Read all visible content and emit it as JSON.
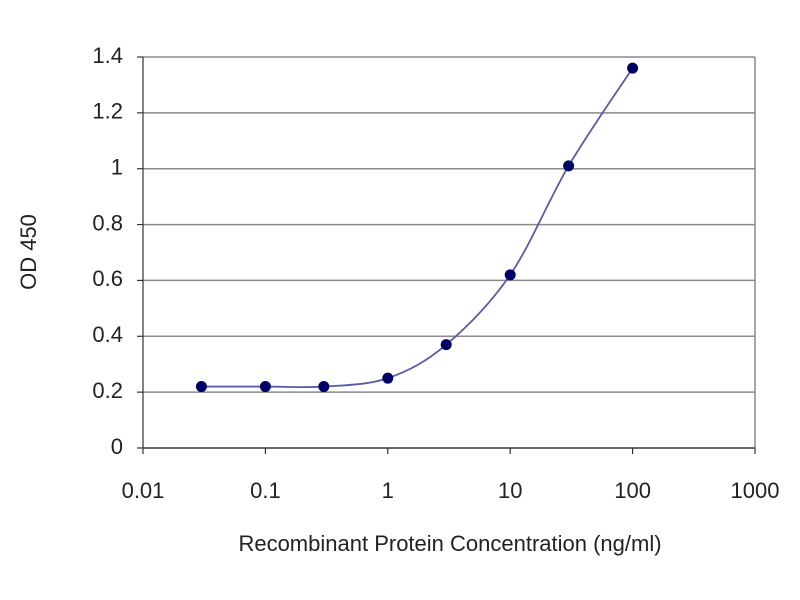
{
  "chart_data": {
    "type": "scatter",
    "xlabel": "Recombinant Protein Concentration (ng/ml)",
    "ylabel": "OD 450",
    "x": [
      0.03,
      0.1,
      0.3,
      1,
      3,
      10,
      30,
      100
    ],
    "values": [
      0.22,
      0.22,
      0.22,
      0.25,
      0.37,
      0.62,
      1.01,
      1.36
    ],
    "color": "#000066",
    "line": true,
    "line_color": "#5a5aaa",
    "xscale": "log",
    "xlim": [
      0.01,
      1000
    ],
    "xticks": [
      0.01,
      0.1,
      1,
      10,
      100,
      1000
    ],
    "ylim": [
      0,
      1.4
    ],
    "yticks": [
      0,
      0.2,
      0.4,
      0.6,
      0.8,
      1,
      1.2,
      1.4
    ],
    "grid": true
  }
}
